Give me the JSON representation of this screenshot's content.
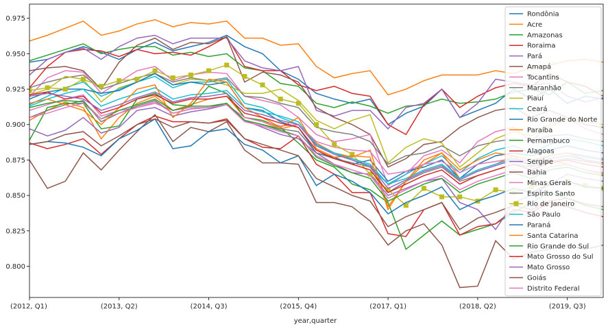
{
  "chart_data": {
    "type": "line",
    "title": "",
    "xlabel": "year,quarter",
    "ylabel": "",
    "ylim": [
      0.778,
      0.985
    ],
    "x_tick_labels": [
      {
        "index": 0,
        "label": "(2012, Q1)"
      },
      {
        "index": 5,
        "label": "(2013, Q2)"
      },
      {
        "index": 10,
        "label": "(2014, Q3)"
      },
      {
        "index": 15,
        "label": "(2015, Q4)"
      },
      {
        "index": 20,
        "label": "(2017, Q1)"
      },
      {
        "index": 25,
        "label": "(2018, Q2)"
      },
      {
        "index": 30,
        "label": "(2019, Q3)"
      }
    ],
    "y_ticks": [
      0.8,
      0.825,
      0.85,
      0.875,
      0.9,
      0.925,
      0.95,
      0.975
    ],
    "y_tick_labels": [
      "0.800",
      "0.825",
      "0.850",
      "0.875",
      "0.900",
      "0.925",
      "0.950",
      "0.975"
    ],
    "legend_position": "right",
    "grid": false,
    "n_points": 33,
    "series": [
      {
        "name": "Rondônia",
        "color": "#1f77b4",
        "marker": "none",
        "values": [
          0.944,
          0.946,
          0.951,
          0.955,
          0.951,
          0.946,
          0.953,
          0.958,
          0.952,
          0.955,
          0.958,
          0.963,
          0.955,
          0.95,
          0.938,
          0.932,
          0.922,
          0.918,
          0.915,
          0.918,
          0.9,
          0.908,
          0.913,
          0.925,
          0.905,
          0.91,
          0.915,
          0.925,
          0.918,
          0.925,
          0.915,
          0.92,
          0.918
        ]
      },
      {
        "name": "Acre",
        "color": "#ff7f0e",
        "marker": "none",
        "values": [
          0.959,
          0.963,
          0.968,
          0.973,
          0.963,
          0.966,
          0.971,
          0.974,
          0.969,
          0.972,
          0.971,
          0.973,
          0.961,
          0.961,
          0.956,
          0.957,
          0.941,
          0.933,
          0.936,
          0.938,
          0.921,
          0.925,
          0.931,
          0.935,
          0.935,
          0.935,
          0.938,
          0.936,
          0.94,
          0.942,
          0.945,
          0.946,
          0.944
        ]
      },
      {
        "name": "Amazonas",
        "color": "#2ca02c",
        "marker": "none",
        "values": [
          0.945,
          0.949,
          0.953,
          0.957,
          0.95,
          0.953,
          0.955,
          0.955,
          0.949,
          0.951,
          0.948,
          0.95,
          0.94,
          0.938,
          0.929,
          0.927,
          0.915,
          0.912,
          0.916,
          0.913,
          0.908,
          0.913,
          0.914,
          0.918,
          0.915,
          0.916,
          0.918,
          0.923,
          0.925,
          0.921,
          0.93,
          0.922,
          0.924
        ]
      },
      {
        "name": "Roraima",
        "color": "#d62728",
        "marker": "none",
        "values": [
          0.926,
          0.941,
          0.951,
          0.953,
          0.952,
          0.948,
          0.953,
          0.95,
          0.951,
          0.949,
          0.955,
          0.962,
          0.941,
          0.938,
          0.938,
          0.928,
          0.924,
          0.927,
          0.922,
          0.92,
          0.9,
          0.893,
          0.914,
          0.925,
          0.912,
          0.92,
          0.926,
          0.929,
          0.927,
          0.936,
          0.93,
          0.927,
          0.92
        ]
      },
      {
        "name": "Pará",
        "color": "#9467bd",
        "marker": "none",
        "values": [
          0.935,
          0.946,
          0.951,
          0.954,
          0.946,
          0.955,
          0.961,
          0.963,
          0.957,
          0.961,
          0.961,
          0.961,
          0.945,
          0.94,
          0.938,
          0.941,
          0.91,
          0.906,
          0.91,
          0.91,
          0.897,
          0.912,
          0.915,
          0.925,
          0.905,
          0.915,
          0.932,
          0.93,
          0.928,
          0.929,
          0.92,
          0.916,
          0.919
        ]
      },
      {
        "name": "Amapá",
        "color": "#8c564b",
        "marker": "none",
        "values": [
          0.938,
          0.94,
          0.941,
          0.938,
          0.925,
          0.944,
          0.956,
          0.961,
          0.953,
          0.958,
          0.957,
          0.962,
          0.93,
          0.937,
          0.935,
          0.93,
          0.912,
          0.905,
          0.9,
          0.893,
          0.87,
          0.876,
          0.886,
          0.888,
          0.898,
          0.905,
          0.91,
          0.912,
          0.905,
          0.91,
          0.905,
          0.9,
          0.898
        ]
      },
      {
        "name": "Tocantins",
        "color": "#e377c2",
        "marker": "none",
        "values": [
          0.92,
          0.933,
          0.938,
          0.937,
          0.922,
          0.93,
          0.938,
          0.941,
          0.931,
          0.935,
          0.937,
          0.936,
          0.92,
          0.917,
          0.914,
          0.905,
          0.893,
          0.888,
          0.89,
          0.893,
          0.857,
          0.865,
          0.878,
          0.882,
          0.873,
          0.888,
          0.895,
          0.898,
          0.888,
          0.9,
          0.905,
          0.897,
          0.893
        ]
      },
      {
        "name": "Maranhão",
        "color": "#7f7f7f",
        "marker": "none",
        "values": [
          0.926,
          0.93,
          0.933,
          0.935,
          0.925,
          0.929,
          0.933,
          0.936,
          0.93,
          0.933,
          0.931,
          0.933,
          0.92,
          0.919,
          0.915,
          0.912,
          0.898,
          0.895,
          0.893,
          0.888,
          0.872,
          0.878,
          0.88,
          0.885,
          0.878,
          0.885,
          0.888,
          0.89,
          0.888,
          0.892,
          0.893,
          0.89,
          0.888
        ]
      },
      {
        "name": "Piauí",
        "color": "#bcbd22",
        "marker": "none",
        "values": [
          0.921,
          0.925,
          0.934,
          0.932,
          0.916,
          0.926,
          0.93,
          0.936,
          0.928,
          0.932,
          0.931,
          0.928,
          0.922,
          0.922,
          0.925,
          0.917,
          0.903,
          0.897,
          0.903,
          0.907,
          0.873,
          0.884,
          0.89,
          0.887,
          0.87,
          0.88,
          0.89,
          0.895,
          0.892,
          0.898,
          0.905,
          0.902,
          0.9
        ]
      },
      {
        "name": "Ceará",
        "color": "#17becf",
        "marker": "none",
        "values": [
          0.914,
          0.92,
          0.926,
          0.93,
          0.92,
          0.925,
          0.93,
          0.934,
          0.926,
          0.93,
          0.93,
          0.932,
          0.915,
          0.912,
          0.905,
          0.9,
          0.885,
          0.88,
          0.875,
          0.87,
          0.858,
          0.865,
          0.872,
          0.878,
          0.866,
          0.876,
          0.882,
          0.885,
          0.88,
          0.886,
          0.89,
          0.888,
          0.885
        ]
      },
      {
        "name": "Rio Grande do Norte",
        "color": "#1f77b4",
        "marker": "none",
        "values": [
          0.918,
          0.923,
          0.925,
          0.925,
          0.922,
          0.924,
          0.93,
          0.936,
          0.928,
          0.93,
          0.928,
          0.93,
          0.912,
          0.91,
          0.902,
          0.898,
          0.88,
          0.877,
          0.872,
          0.875,
          0.86,
          0.867,
          0.87,
          0.875,
          0.862,
          0.872,
          0.878,
          0.88,
          0.878,
          0.882,
          0.885,
          0.882,
          0.88
        ]
      },
      {
        "name": "Paraíba",
        "color": "#ff7f0e",
        "marker": "none",
        "values": [
          0.903,
          0.91,
          0.916,
          0.912,
          0.89,
          0.905,
          0.915,
          0.92,
          0.91,
          0.914,
          0.918,
          0.92,
          0.905,
          0.902,
          0.897,
          0.9,
          0.887,
          0.88,
          0.877,
          0.882,
          0.842,
          0.86,
          0.872,
          0.88,
          0.862,
          0.868,
          0.872,
          0.878,
          0.87,
          0.875,
          0.872,
          0.868,
          0.865
        ]
      },
      {
        "name": "Pernambuco",
        "color": "#2ca02c",
        "marker": "none",
        "values": [
          0.889,
          0.912,
          0.915,
          0.915,
          0.897,
          0.899,
          0.918,
          0.922,
          0.914,
          0.913,
          0.927,
          0.922,
          0.905,
          0.903,
          0.898,
          0.887,
          0.875,
          0.87,
          0.858,
          0.854,
          0.845,
          0.812,
          0.822,
          0.832,
          0.822,
          0.826,
          0.83,
          0.838,
          0.845,
          0.852,
          0.848,
          0.843,
          0.84
        ]
      },
      {
        "name": "Alagoas",
        "color": "#d62728",
        "marker": "none",
        "values": [
          0.887,
          0.883,
          0.886,
          0.89,
          0.879,
          0.89,
          0.9,
          0.906,
          0.902,
          0.902,
          0.901,
          0.904,
          0.89,
          0.884,
          0.883,
          0.892,
          0.872,
          0.865,
          0.852,
          0.852,
          0.823,
          0.821,
          0.84,
          0.845,
          0.822,
          0.828,
          0.83,
          0.84,
          0.838,
          0.845,
          0.842,
          0.838,
          0.835
        ]
      },
      {
        "name": "Sergipe",
        "color": "#9467bd",
        "marker": "none",
        "values": [
          0.897,
          0.892,
          0.896,
          0.905,
          0.894,
          0.898,
          0.91,
          0.912,
          0.906,
          0.909,
          0.911,
          0.914,
          0.903,
          0.898,
          0.893,
          0.89,
          0.88,
          0.872,
          0.866,
          0.865,
          0.85,
          0.855,
          0.86,
          0.862,
          0.845,
          0.84,
          0.826,
          0.845,
          0.85,
          0.858,
          0.865,
          0.862,
          0.86
        ]
      },
      {
        "name": "Bahia",
        "color": "#8c564b",
        "marker": "none",
        "values": [
          0.875,
          0.855,
          0.86,
          0.88,
          0.868,
          0.882,
          0.895,
          0.907,
          0.888,
          0.898,
          0.895,
          0.902,
          0.882,
          0.873,
          0.873,
          0.872,
          0.845,
          0.845,
          0.842,
          0.832,
          0.815,
          0.825,
          0.83,
          0.815,
          0.785,
          0.786,
          0.818,
          0.805,
          0.81,
          0.812,
          0.815,
          0.812,
          0.815
        ]
      },
      {
        "name": "Minas Gerais",
        "color": "#e377c2",
        "marker": "none",
        "values": [
          0.91,
          0.914,
          0.918,
          0.921,
          0.906,
          0.91,
          0.912,
          0.915,
          0.91,
          0.912,
          0.912,
          0.914,
          0.905,
          0.902,
          0.899,
          0.9,
          0.888,
          0.884,
          0.882,
          0.881,
          0.865,
          0.867,
          0.872,
          0.874,
          0.866,
          0.872,
          0.874,
          0.876,
          0.874,
          0.878,
          0.88,
          0.878,
          0.876
        ]
      },
      {
        "name": "Espírito Santo",
        "color": "#7f7f7f",
        "marker": "none",
        "values": [
          0.905,
          0.91,
          0.914,
          0.917,
          0.902,
          0.908,
          0.913,
          0.917,
          0.908,
          0.911,
          0.912,
          0.915,
          0.903,
          0.9,
          0.897,
          0.895,
          0.88,
          0.876,
          0.873,
          0.87,
          0.852,
          0.86,
          0.866,
          0.87,
          0.86,
          0.864,
          0.868,
          0.872,
          0.87,
          0.874,
          0.876,
          0.874,
          0.872
        ]
      },
      {
        "name": "Rio de Janeiro",
        "color": "#bcbd22",
        "marker": "square",
        "values": [
          0.924,
          0.926,
          0.925,
          0.932,
          0.927,
          0.931,
          0.932,
          0.938,
          0.933,
          0.935,
          0.938,
          0.942,
          0.934,
          0.928,
          0.918,
          0.915,
          0.9,
          0.886,
          0.879,
          0.865,
          0.854,
          0.843,
          0.855,
          0.849,
          0.849,
          0.846,
          0.854,
          0.852,
          0.856,
          0.858,
          0.86,
          0.857,
          0.855
        ]
      },
      {
        "name": "São Paulo",
        "color": "#17becf",
        "marker": "none",
        "values": [
          0.913,
          0.918,
          0.922,
          0.925,
          0.913,
          0.918,
          0.922,
          0.926,
          0.918,
          0.921,
          0.922,
          0.924,
          0.912,
          0.909,
          0.906,
          0.902,
          0.886,
          0.88,
          0.876,
          0.872,
          0.858,
          0.862,
          0.868,
          0.872,
          0.862,
          0.868,
          0.872,
          0.876,
          0.872,
          0.878,
          0.88,
          0.877,
          0.875
        ]
      },
      {
        "name": "Paraná",
        "color": "#1f77b4",
        "marker": "none",
        "values": [
          0.886,
          0.888,
          0.887,
          0.884,
          0.878,
          0.89,
          0.896,
          0.904,
          0.883,
          0.885,
          0.895,
          0.897,
          0.886,
          0.882,
          0.873,
          0.878,
          0.857,
          0.865,
          0.86,
          0.852,
          0.837,
          0.845,
          0.85,
          0.856,
          0.84,
          0.846,
          0.85,
          0.855,
          0.852,
          0.858,
          0.86,
          0.856,
          0.855
        ]
      },
      {
        "name": "Santa Catarina",
        "color": "#ff7f0e",
        "marker": "none",
        "values": [
          0.915,
          0.918,
          0.914,
          0.91,
          0.9,
          0.912,
          0.925,
          0.928,
          0.905,
          0.915,
          0.932,
          0.93,
          0.912,
          0.905,
          0.898,
          0.905,
          0.883,
          0.877,
          0.878,
          0.877,
          0.84,
          0.86,
          0.875,
          0.88,
          0.868,
          0.875,
          0.88,
          0.878,
          0.875,
          0.878,
          0.88,
          0.875,
          0.872
        ]
      },
      {
        "name": "Rio Grande do Sul",
        "color": "#2ca02c",
        "marker": "none",
        "values": [
          0.912,
          0.915,
          0.917,
          0.916,
          0.904,
          0.91,
          0.914,
          0.918,
          0.91,
          0.913,
          0.913,
          0.915,
          0.903,
          0.9,
          0.896,
          0.892,
          0.877,
          0.871,
          0.866,
          0.862,
          0.846,
          0.852,
          0.858,
          0.862,
          0.852,
          0.858,
          0.862,
          0.866,
          0.862,
          0.868,
          0.87,
          0.866,
          0.864
        ]
      },
      {
        "name": "Mato Grosso do Sul",
        "color": "#d62728",
        "marker": "none",
        "values": [
          0.921,
          0.923,
          0.918,
          0.92,
          0.908,
          0.912,
          0.918,
          0.921,
          0.915,
          0.918,
          0.918,
          0.92,
          0.908,
          0.905,
          0.901,
          0.898,
          0.882,
          0.876,
          0.872,
          0.868,
          0.852,
          0.858,
          0.864,
          0.868,
          0.858,
          0.864,
          0.868,
          0.872,
          0.868,
          0.873,
          0.875,
          0.872,
          0.87
        ]
      },
      {
        "name": "Mato Grosso",
        "color": "#9467bd",
        "marker": "none",
        "values": [
          0.92,
          0.922,
          0.92,
          0.918,
          0.91,
          0.914,
          0.919,
          0.923,
          0.916,
          0.919,
          0.92,
          0.922,
          0.91,
          0.907,
          0.903,
          0.9,
          0.885,
          0.879,
          0.875,
          0.871,
          0.855,
          0.861,
          0.867,
          0.871,
          0.861,
          0.867,
          0.871,
          0.875,
          0.871,
          0.876,
          0.878,
          0.875,
          0.873
        ]
      },
      {
        "name": "Goiás",
        "color": "#8c564b",
        "marker": "none",
        "values": [
          0.886,
          0.888,
          0.893,
          0.895,
          0.885,
          0.892,
          0.9,
          0.904,
          0.898,
          0.902,
          0.901,
          0.903,
          0.89,
          0.886,
          0.882,
          0.878,
          0.862,
          0.856,
          0.85,
          0.846,
          0.828,
          0.835,
          0.84,
          0.845,
          0.826,
          0.834,
          0.838,
          0.843,
          0.84,
          0.846,
          0.848,
          0.844,
          0.842
        ]
      },
      {
        "name": "Distrito Federal",
        "color": "#e377c2",
        "marker": "none",
        "values": [
          0.905,
          0.908,
          0.912,
          0.915,
          0.904,
          0.908,
          0.912,
          0.916,
          0.908,
          0.911,
          0.912,
          0.914,
          0.902,
          0.899,
          0.895,
          0.892,
          0.878,
          0.872,
          0.868,
          0.864,
          0.848,
          0.854,
          0.86,
          0.864,
          0.854,
          0.86,
          0.864,
          0.868,
          0.864,
          0.87,
          0.872,
          0.868,
          0.866
        ]
      }
    ]
  }
}
